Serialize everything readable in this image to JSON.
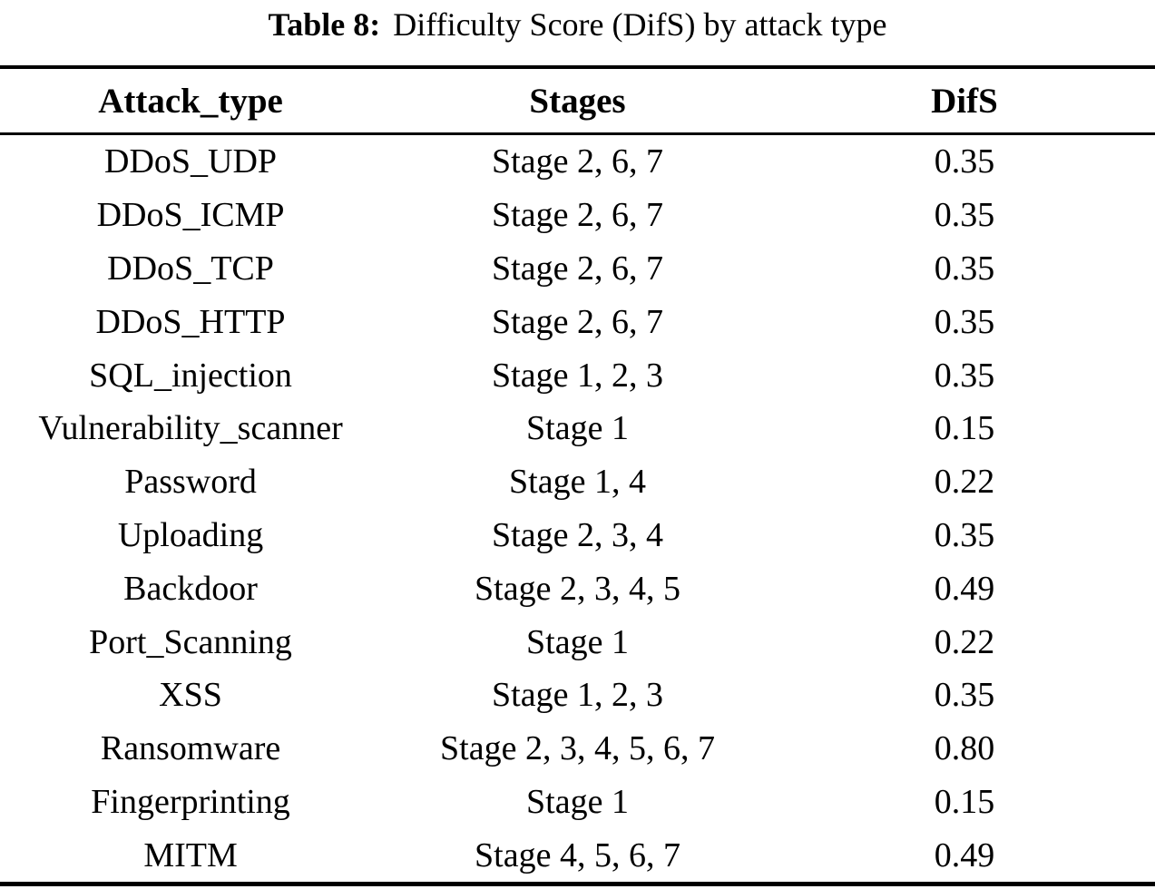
{
  "caption": {
    "label": "Table 8:",
    "text": "Difficulty Score (DifS) by attack type"
  },
  "table": {
    "columns": [
      "Attack_type",
      "Stages",
      "DifS"
    ],
    "rows": [
      {
        "attack_type": "DDoS_UDP",
        "stages": "Stage 2, 6, 7",
        "difs": "0.35"
      },
      {
        "attack_type": "DDoS_ICMP",
        "stages": "Stage 2, 6, 7",
        "difs": "0.35"
      },
      {
        "attack_type": "DDoS_TCP",
        "stages": "Stage 2, 6, 7",
        "difs": "0.35"
      },
      {
        "attack_type": "DDoS_HTTP",
        "stages": "Stage 2, 6, 7",
        "difs": "0.35"
      },
      {
        "attack_type": "SQL_injection",
        "stages": "Stage 1, 2, 3",
        "difs": "0.35"
      },
      {
        "attack_type": "Vulnerability_scanner",
        "stages": "Stage 1",
        "difs": "0.15"
      },
      {
        "attack_type": "Password",
        "stages": "Stage 1, 4",
        "difs": "0.22"
      },
      {
        "attack_type": "Uploading",
        "stages": "Stage 2, 3, 4",
        "difs": "0.35"
      },
      {
        "attack_type": "Backdoor",
        "stages": "Stage 2, 3, 4, 5",
        "difs": "0.49"
      },
      {
        "attack_type": "Port_Scanning",
        "stages": "Stage 1",
        "difs": "0.22"
      },
      {
        "attack_type": "XSS",
        "stages": "Stage 1, 2, 3",
        "difs": "0.35"
      },
      {
        "attack_type": "Ransomware",
        "stages": "Stage 2, 3, 4, 5, 6, 7",
        "difs": "0.80"
      },
      {
        "attack_type": "Fingerprinting",
        "stages": "Stage 1",
        "difs": "0.15"
      },
      {
        "attack_type": "MITM",
        "stages": "Stage 4, 5, 6, 7",
        "difs": "0.49"
      }
    ]
  }
}
